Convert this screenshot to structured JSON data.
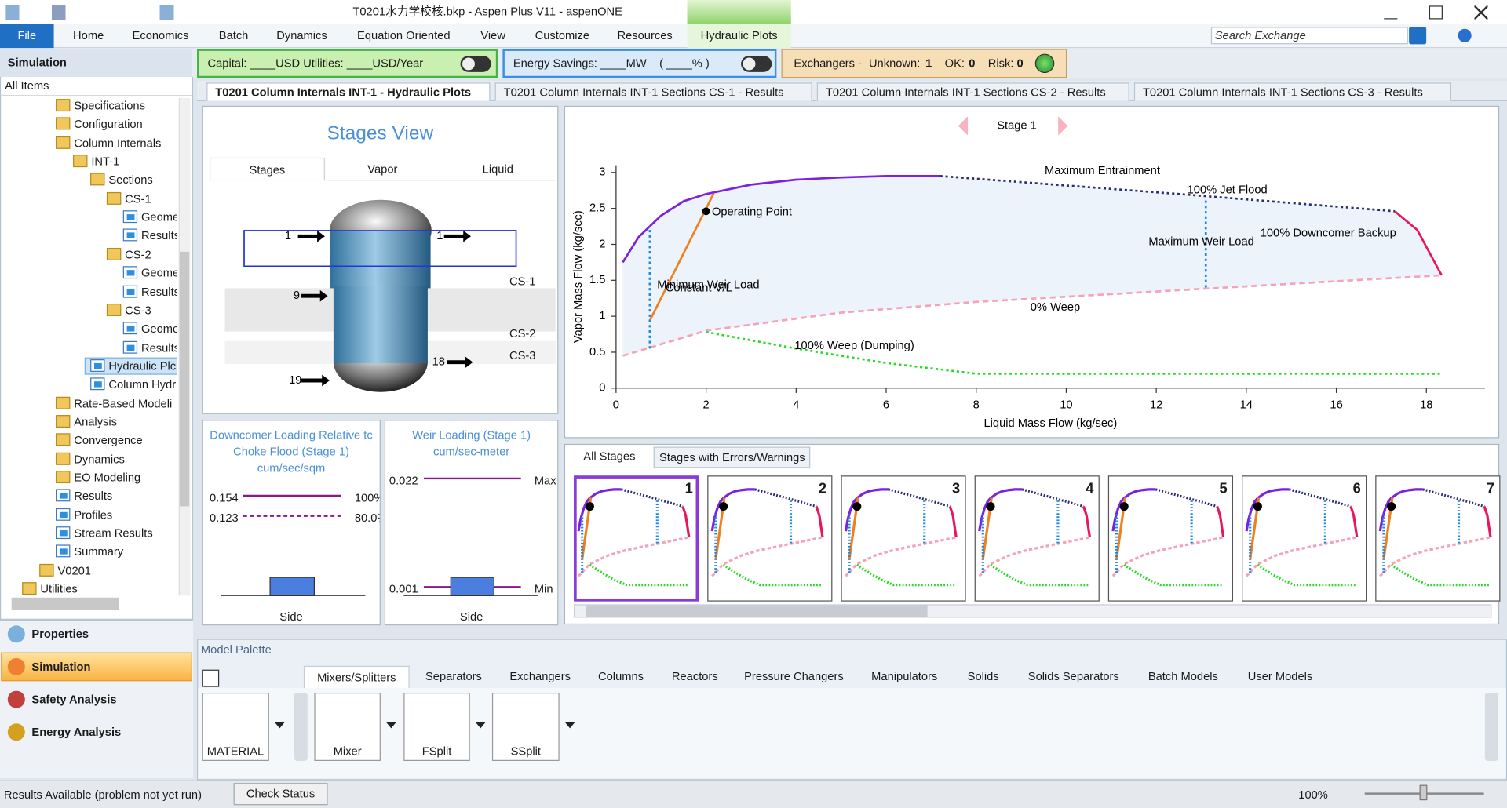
{
  "titlebar": {
    "title": "T0201水力学校核.bkp - Aspen Plus V11 - aspenONE"
  },
  "ribbon": {
    "file": "File",
    "tabs": [
      "Home",
      "Economics",
      "Batch",
      "Dynamics",
      "Equation Oriented",
      "View",
      "Customize",
      "Resources",
      "Hydraulic Plots"
    ],
    "search": "Search Exchange"
  },
  "economics_bar": {
    "capital": "Capital: ____USD  Utilities: ____USD/Year",
    "energy": "Energy Savings: ____MW    ( ____% )",
    "exchangers": "Exchangers -",
    "unknown_label": "Unknown:",
    "unknown": 1,
    "ok_label": "OK:",
    "ok": 0,
    "risk_label": "Risk:",
    "risk": 0
  },
  "navigator": {
    "header": "Simulation",
    "filter": "All Items",
    "tree": [
      "Specifications",
      "Configuration",
      "Column Internals",
      "INT-1",
      "Sections",
      "CS-1",
      "Geome",
      "Results",
      "CS-2",
      "Geome",
      "Results",
      "CS-3",
      "Geome",
      "Results",
      "Hydraulic Plc",
      "Column Hydr",
      "Rate-Based Modeli",
      "Analysis",
      "Convergence",
      "Dynamics",
      "EO Modeling",
      "Results",
      "Profiles",
      "Stream Results",
      "Summary",
      "V0201",
      "Utilities"
    ],
    "panes": [
      "Properties",
      "Simulation",
      "Safety Analysis",
      "Energy Analysis"
    ]
  },
  "doc_tabs": [
    "T0201 Column Internals INT-1 - Hydraulic Plots",
    "T0201 Column Internals INT-1 Sections CS-1 - Results",
    "T0201 Column Internals INT-1 Sections CS-2 - Results",
    "T0201 Column Internals INT-1 Sections CS-3 - Results"
  ],
  "stages_view": {
    "title": "Stages View",
    "tabs": [
      "Stages",
      "Vapor",
      "Liquid"
    ],
    "streams": [
      "1",
      "1",
      "9",
      "19",
      "18"
    ],
    "sections": [
      "CS-1",
      "CS-2",
      "CS-3"
    ]
  },
  "downcomer": {
    "title": [
      "Downcomer Loading Relative tc",
      "Choke Flood (Stage 1)"
    ],
    "unit": "cum/sec/sqm",
    "rows": [
      {
        "value": "0.154",
        "pct": "100%"
      },
      {
        "value": "0.123",
        "pct": "80.0%"
      }
    ],
    "axis": "Side"
  },
  "weir": {
    "title": "Weir Loading (Stage 1)",
    "unit": "cum/sec-meter",
    "max_value": "0.022",
    "max_label": "Max",
    "min_value": "0.001",
    "min_label": "Min",
    "axis": "Side"
  },
  "chart_data": {
    "type": "line",
    "title": "Stage 1",
    "x_label": "Liquid Mass Flow (kg/sec)",
    "y_label": "Vapor Mass Flow (kg/sec)",
    "xlim": [
      0,
      19.3
    ],
    "ylim": [
      0,
      3.1
    ],
    "xticks": [
      0,
      2,
      4,
      6,
      8,
      10,
      12,
      14,
      16,
      18
    ],
    "yticks": [
      0,
      0.5,
      1,
      1.5,
      2,
      2.5,
      3
    ],
    "series": [
      {
        "name": "Maximum Entrainment",
        "color": "#7b22e0",
        "dash": "solid",
        "x": [
          0.15,
          0.5,
          1,
          1.5,
          2,
          3,
          4,
          5,
          6,
          7.2
        ],
        "values": [
          1.75,
          2.1,
          2.4,
          2.6,
          2.7,
          2.83,
          2.9,
          2.93,
          2.95,
          2.95
        ]
      },
      {
        "name": "100% Jet Flood",
        "color": "#2b2b78",
        "dash": "dotted",
        "x": [
          7.2,
          12.5,
          17.3
        ],
        "values": [
          2.95,
          2.7,
          2.46
        ]
      },
      {
        "name": "100% Downcomer Backup",
        "color": "#e8175d",
        "dash": "solid",
        "x": [
          17.3,
          17.8,
          18.34
        ],
        "values": [
          2.46,
          2.2,
          1.57
        ]
      },
      {
        "name": "0% Weep",
        "color": "#f4a3b8",
        "dash": "dashed",
        "x": [
          0.15,
          2,
          5,
          8,
          13,
          18.34
        ],
        "values": [
          0.45,
          0.8,
          1.05,
          1.2,
          1.38,
          1.57
        ]
      },
      {
        "name": "100% Weep (Dumping)",
        "color": "#22dd22",
        "dash": "dotted",
        "x": [
          2,
          4,
          6,
          8,
          18.3
        ],
        "values": [
          0.78,
          0.55,
          0.35,
          0.2,
          0.2
        ]
      },
      {
        "name": "Constant V/L",
        "color": "#f07f1f",
        "dash": "solid",
        "x": [
          0.75,
          2.17
        ],
        "values": [
          0.94,
          2.71
        ]
      },
      {
        "name": "Minimum Weir Load",
        "color": "#1e88e5",
        "dash": "dotted",
        "x": [
          0.75,
          0.75
        ],
        "values": [
          0.55,
          2.25
        ]
      },
      {
        "name": "Maximum Weir Load",
        "color": "#1e88e5",
        "dash": "dotted",
        "x": [
          13.1,
          13.1
        ],
        "values": [
          1.4,
          2.65
        ]
      }
    ],
    "operating_point": {
      "label": "Operating Point",
      "x": 2.0,
      "y": 2.46
    }
  },
  "stage_tabs": [
    "All Stages",
    "Stages with Errors/Warnings"
  ],
  "thumbnails": [
    "1",
    "2",
    "3",
    "4",
    "5",
    "6",
    "7"
  ],
  "palette": {
    "title": "Model Palette",
    "tabs": [
      "Mixers/Splitters",
      "Separators",
      "Exchangers",
      "Columns",
      "Reactors",
      "Pressure Changers",
      "Manipulators",
      "Solids",
      "Solids Separators",
      "Batch Models",
      "User Models"
    ],
    "models": [
      "MATERIAL",
      "Mixer",
      "FSplit",
      "SSplit"
    ]
  },
  "status": {
    "message": "Results Available (problem not yet run)",
    "button": "Check Status",
    "zoom": "100%"
  }
}
